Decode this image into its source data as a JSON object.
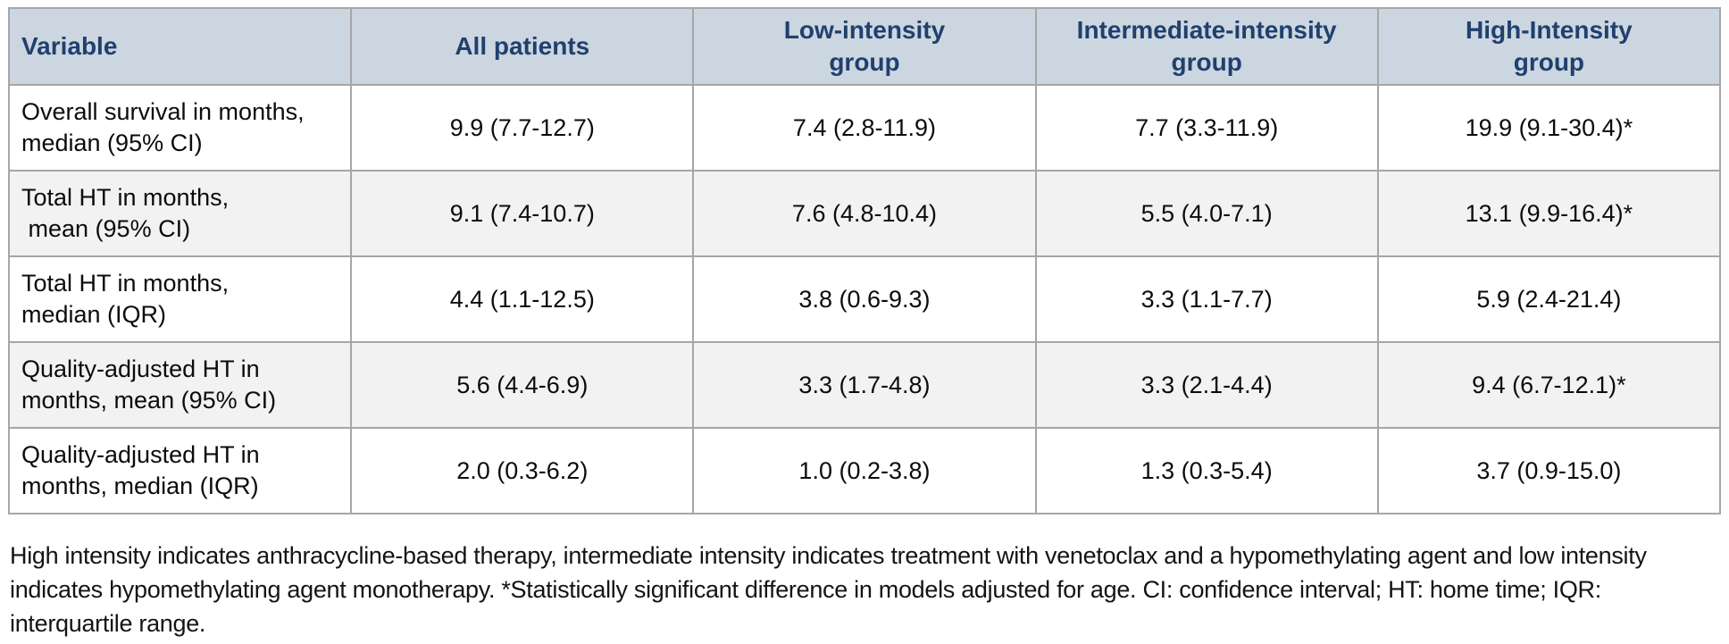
{
  "chart_data": {
    "type": "table",
    "columns": [
      "Variable",
      "All patients",
      "Low-intensity\ngroup",
      "Intermediate-intensity\ngroup",
      "High-Intensity\ngroup"
    ],
    "rows": [
      {
        "label": "Overall survival in months,\nmedian (95% CI)",
        "values": [
          "9.9 (7.7-12.7)",
          "7.4 (2.8-11.9)",
          "7.7 (3.3-11.9)",
          "19.9 (9.1-30.4)*"
        ]
      },
      {
        "label": "Total HT in months,\n mean (95% CI)",
        "values": [
          "9.1 (7.4-10.7)",
          "7.6 (4.8-10.4)",
          "5.5 (4.0-7.1)",
          "13.1 (9.9-16.4)*"
        ]
      },
      {
        "label": "Total HT in months,\nmedian (IQR)",
        "values": [
          "4.4 (1.1-12.5)",
          "3.8 (0.6-9.3)",
          "3.3 (1.1-7.7)",
          "5.9 (2.4-21.4)"
        ]
      },
      {
        "label": "Quality-adjusted HT in\nmonths, mean (95% CI)",
        "values": [
          "5.6 (4.4-6.9)",
          "3.3 (1.7-4.8)",
          "3.3 (2.1-4.4)",
          "9.4 (6.7-12.1)*"
        ]
      },
      {
        "label": "Quality-adjusted HT in\nmonths, median (IQR)",
        "values": [
          "2.0 (0.3-6.2)",
          "1.0 (0.2-3.8)",
          "1.3 (0.3-5.4)",
          "3.7 (0.9-15.0)"
        ]
      }
    ],
    "footnote": "High intensity indicates anthracycline-based therapy, intermediate intensity indicates treatment with venetoclax and a hypomethylating agent and low intensity indicates hypomethylating agent monotherapy. *Statistically significant difference in models adjusted for age. CI: confidence interval; HT: home time; IQR: interquartile range.",
    "colors": {
      "header_bg": "#ccd6e0",
      "header_text": "#20406e",
      "zebra_row_bg": "#f2f2f2",
      "border": "#a6a6a6"
    }
  }
}
